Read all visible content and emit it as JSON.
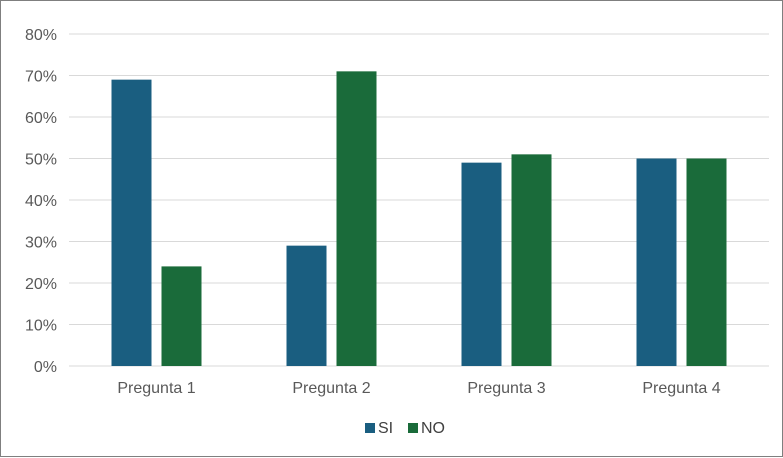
{
  "chart_data": {
    "type": "bar",
    "title": "",
    "xlabel": "",
    "ylabel": "",
    "categories": [
      "Pregunta 1",
      "Pregunta 2",
      "Pregunta 3",
      "Pregunta 4"
    ],
    "series": [
      {
        "name": "SI",
        "values": [
          69,
          29,
          49,
          50
        ],
        "color": "#1a5e80"
      },
      {
        "name": "NO",
        "values": [
          24,
          71,
          51,
          50
        ],
        "color": "#1a6b3a"
      }
    ],
    "ylim": [
      0,
      80
    ],
    "yticks": [
      0,
      10,
      20,
      30,
      40,
      50,
      60,
      70,
      80
    ],
    "ytick_labels": [
      "0%",
      "10%",
      "20%",
      "30%",
      "40%",
      "50%",
      "60%",
      "70%",
      "80%"
    ],
    "grid": true,
    "legend_position": "bottom",
    "grid_color": "#d9d9d9"
  }
}
